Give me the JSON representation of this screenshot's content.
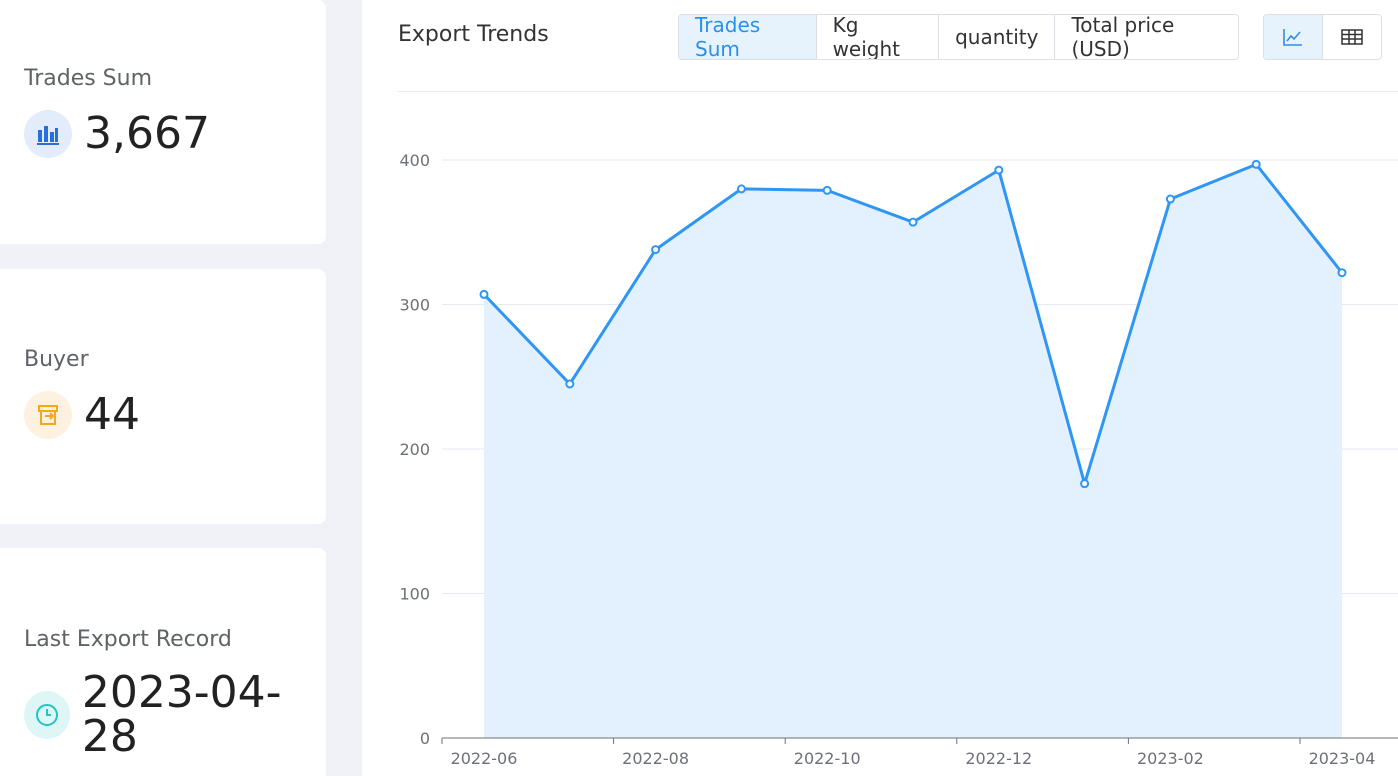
{
  "stats": [
    {
      "label": "Trades Sum",
      "value": "3,667",
      "icon": "bar-chart-icon",
      "icon_color": "#2a6fd6",
      "icon_bg": "#e3ecfa"
    },
    {
      "label": "Buyer",
      "value": "44",
      "icon": "store-icon",
      "icon_color": "#f5a623",
      "icon_bg": "#fdf1e0"
    },
    {
      "label": "Last Export Record",
      "value": "2023-04-28",
      "icon": "clock-icon",
      "icon_color": "#27c2c2",
      "icon_bg": "#dff6f6"
    }
  ],
  "panel": {
    "title": "Export Trends",
    "metric_tabs": [
      "Trades Sum",
      "Kg weight",
      "quantity",
      "Total price (USD)"
    ],
    "active_metric": "Trades Sum",
    "view_toggles": [
      "line-chart-icon",
      "table-icon"
    ],
    "active_view": "line-chart-icon"
  },
  "colors": {
    "accent": "#2d8ee8",
    "line": "#2f96f3",
    "area": "#e3f0fd"
  },
  "chart_data": {
    "type": "area",
    "x": [
      "2022-06",
      "2022-07",
      "2022-08",
      "2022-09",
      "2022-10",
      "2022-11",
      "2022-12",
      "2023-01",
      "2023-02",
      "2023-03",
      "2023-04"
    ],
    "x_tick_labels": [
      "2022-06",
      "2022-08",
      "2022-10",
      "2022-12",
      "2023-02",
      "2023-04"
    ],
    "series": [
      {
        "values": [
          307,
          245,
          338,
          380,
          379,
          357,
          393,
          176,
          373,
          397,
          322
        ]
      }
    ],
    "y_ticks": [
      0,
      100,
      200,
      300,
      400
    ],
    "ylim": [
      0,
      400
    ],
    "grid": true
  }
}
